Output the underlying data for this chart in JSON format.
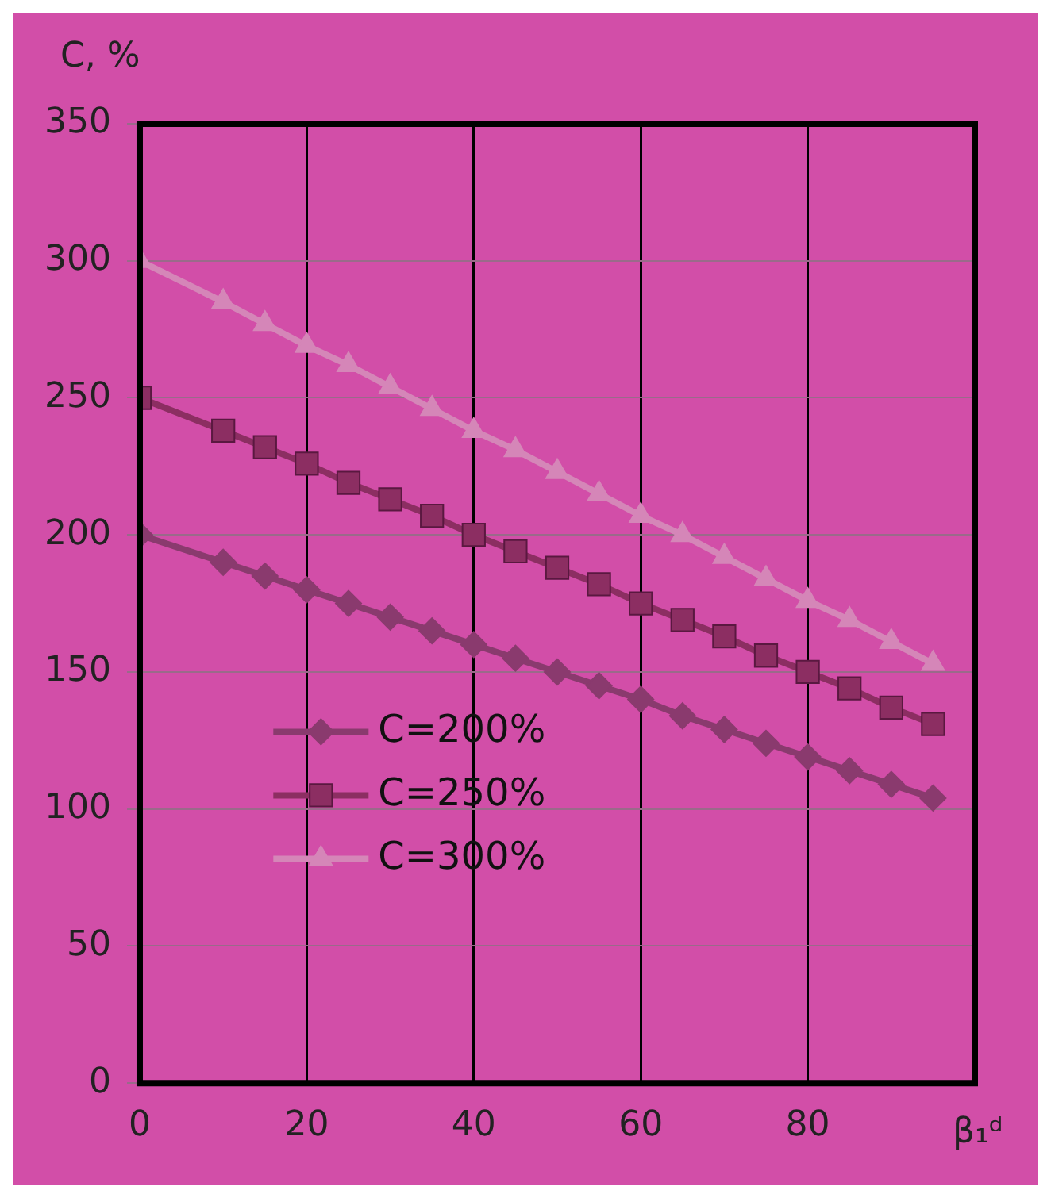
{
  "chart_data": {
    "type": "line",
    "ylabel": "C, %",
    "xlabel": "β₁ᵈ",
    "x": [
      0,
      10,
      15,
      20,
      25,
      30,
      35,
      40,
      45,
      50,
      55,
      60,
      65,
      70,
      75,
      80,
      85,
      90,
      95
    ],
    "series": [
      {
        "name": "C=200%",
        "color": "#8a3a6e",
        "marker": "diamond",
        "values": [
          200,
          190,
          185,
          180,
          175,
          170,
          165,
          160,
          155,
          150,
          145,
          140,
          134,
          129,
          124,
          119,
          114,
          109,
          104
        ]
      },
      {
        "name": "C=250%",
        "color": "#8c2e62",
        "marker": "square",
        "values": [
          250,
          238,
          232,
          226,
          219,
          213,
          207,
          200,
          194,
          188,
          182,
          175,
          169,
          163,
          156,
          150,
          144,
          137,
          131
        ]
      },
      {
        "name": "C=300%",
        "color": "#d586b8",
        "marker": "triangle",
        "values": [
          300,
          285,
          277,
          269,
          262,
          254,
          246,
          238,
          231,
          223,
          215,
          207,
          200,
          192,
          184,
          176,
          169,
          161,
          153
        ]
      }
    ],
    "xlim": [
      0,
      100
    ],
    "xticks": [
      0,
      20,
      40,
      60,
      80,
      {
        "value": 100,
        "label": null
      }
    ],
    "ylim": [
      0,
      350
    ],
    "yticks": [
      0,
      50,
      100,
      150,
      200,
      250,
      300,
      350
    ],
    "grid": true,
    "legend": "bottom left"
  }
}
